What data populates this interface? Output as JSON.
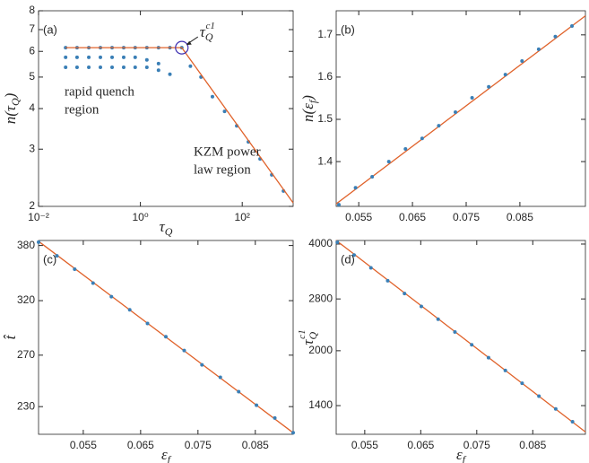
{
  "chart_data": [
    {
      "type": "scatter",
      "panel_label": "(a)",
      "xscale": "log",
      "yscale": "log",
      "xlim": [
        0.01,
        1000
      ],
      "ylim": [
        2,
        8
      ],
      "xticks": [
        {
          "value": 0.01,
          "label": "10⁻²"
        },
        {
          "value": 1,
          "label": "10⁰"
        },
        {
          "value": 100,
          "label": "10²"
        }
      ],
      "yticks": [
        2,
        3,
        4,
        5,
        6,
        7,
        8
      ],
      "xlabel": {
        "base": "τ",
        "sub": "Q"
      },
      "ylabel": {
        "base": "n(τ",
        "sub": "Q",
        "tail": ")"
      },
      "annotations": [
        "rapid quench",
        "region",
        "KZM power",
        "law region"
      ],
      "callout": {
        "base": "τ",
        "sub": "Q",
        "sup": "c1"
      },
      "series": [
        {
          "style": "markers",
          "color": "#3a7fb6",
          "x": [
            0.034,
            0.057,
            0.097,
            0.164,
            0.278,
            0.47,
            0.79,
            1.34,
            2.27,
            3.8,
            6.5,
            9.6,
            15.5,
            26,
            45,
            78,
            132,
            224,
            380,
            645
          ],
          "values": [
            6.16,
            6.16,
            6.16,
            6.16,
            6.16,
            6.16,
            6.16,
            6.16,
            6.16,
            6.16,
            6.16,
            5.4,
            5.0,
            4.35,
            3.92,
            3.54,
            3.16,
            2.8,
            2.5,
            2.23
          ]
        },
        {
          "style": "markers",
          "color": "#3a7fb6",
          "x": [
            0.034,
            0.057,
            0.097,
            0.164,
            0.278,
            0.47,
            0.79,
            1.34,
            2.27
          ],
          "values": [
            5.75,
            5.75,
            5.75,
            5.75,
            5.75,
            5.75,
            5.75,
            5.65,
            5.5
          ]
        },
        {
          "style": "markers",
          "color": "#3a7fb6",
          "x": [
            0.034,
            0.057,
            0.097,
            0.164,
            0.278,
            0.47,
            0.79,
            1.34,
            2.27,
            3.8
          ],
          "values": [
            5.36,
            5.36,
            5.36,
            5.36,
            5.36,
            5.36,
            5.36,
            5.36,
            5.25,
            5.1
          ]
        },
        {
          "style": "line",
          "color": "#e0622a",
          "x": [
            0.034,
            6.5,
            1000
          ],
          "values": [
            6.16,
            6.16,
            2.05
          ]
        }
      ]
    },
    {
      "type": "scatter",
      "panel_label": "(b)",
      "xlim": [
        0.0508,
        0.0972
      ],
      "ylim": [
        1.294,
        1.757
      ],
      "xticks": [
        0.055,
        0.065,
        0.075,
        0.085
      ],
      "yticks": [
        1.4,
        1.5,
        1.6,
        1.7
      ],
      "ylabel": {
        "base": "n(ε",
        "sub": "f",
        "tail": ")"
      },
      "series": [
        {
          "style": "line",
          "color": "#e0622a",
          "x": [
            0.0508,
            0.0972
          ],
          "values": [
            1.3,
            1.745
          ]
        },
        {
          "style": "markers",
          "color": "#3a7fb6",
          "x": [
            0.0513,
            0.0544,
            0.0575,
            0.0606,
            0.0637,
            0.0668,
            0.0699,
            0.073,
            0.0761,
            0.0792,
            0.0823,
            0.0854,
            0.0885,
            0.0916,
            0.0947
          ],
          "values": [
            1.298,
            1.338,
            1.364,
            1.4,
            1.43,
            1.455,
            1.485,
            1.517,
            1.551,
            1.577,
            1.606,
            1.638,
            1.666,
            1.696,
            1.721
          ]
        }
      ]
    },
    {
      "type": "scatter",
      "panel_label": "(c)",
      "yscale": "log",
      "xlim": [
        0.0472,
        0.0916
      ],
      "ylim": [
        211,
        386
      ],
      "xticks": [
        0.055,
        0.065,
        0.075,
        0.085
      ],
      "yticks": [
        230,
        270,
        320,
        380
      ],
      "xlabel": {
        "base": "ε",
        "sub": "f"
      },
      "ylabel": {
        "base": "t̂"
      },
      "series": [
        {
          "style": "line",
          "color": "#e0622a",
          "x": [
            0.0472,
            0.0916
          ],
          "values": [
            385,
            212
          ]
        },
        {
          "style": "markers",
          "color": "#3a7fb6",
          "x": [
            0.0472,
            0.0504,
            0.0535,
            0.0567,
            0.0599,
            0.0631,
            0.0662,
            0.0694,
            0.0726,
            0.0757,
            0.0789,
            0.0821,
            0.0852,
            0.0884,
            0.0916
          ],
          "values": [
            384,
            368,
            353,
            338,
            324,
            311,
            298,
            286,
            274,
            262,
            252,
            241,
            231,
            222,
            212
          ]
        }
      ]
    },
    {
      "type": "scatter",
      "panel_label": "(d)",
      "yscale": "log",
      "xlim": [
        0.0499,
        0.0944
      ],
      "ylim": [
        1162,
        4094
      ],
      "xticks": [
        0.055,
        0.065,
        0.075,
        0.085
      ],
      "yticks": [
        1400,
        2000,
        2800,
        4000
      ],
      "xlabel": {
        "base": "ε",
        "sub": "f"
      },
      "ylabel": {
        "base": "τ",
        "sub": "Q",
        "sup": "c1"
      },
      "series": [
        {
          "style": "line",
          "color": "#e0622a",
          "x": [
            0.0499,
            0.0944
          ],
          "values": [
            4094,
            1180
          ]
        },
        {
          "style": "markers",
          "color": "#3a7fb6",
          "x": [
            0.0501,
            0.0531,
            0.0561,
            0.0591,
            0.0621,
            0.0651,
            0.0681,
            0.0711,
            0.0741,
            0.0771,
            0.0801,
            0.0831,
            0.0861,
            0.0891,
            0.0921
          ],
          "values": [
            4047,
            3724,
            3426,
            3152,
            2900,
            2668,
            2455,
            2259,
            2078,
            1912,
            1759,
            1619,
            1489,
            1370,
            1261
          ]
        }
      ]
    }
  ]
}
